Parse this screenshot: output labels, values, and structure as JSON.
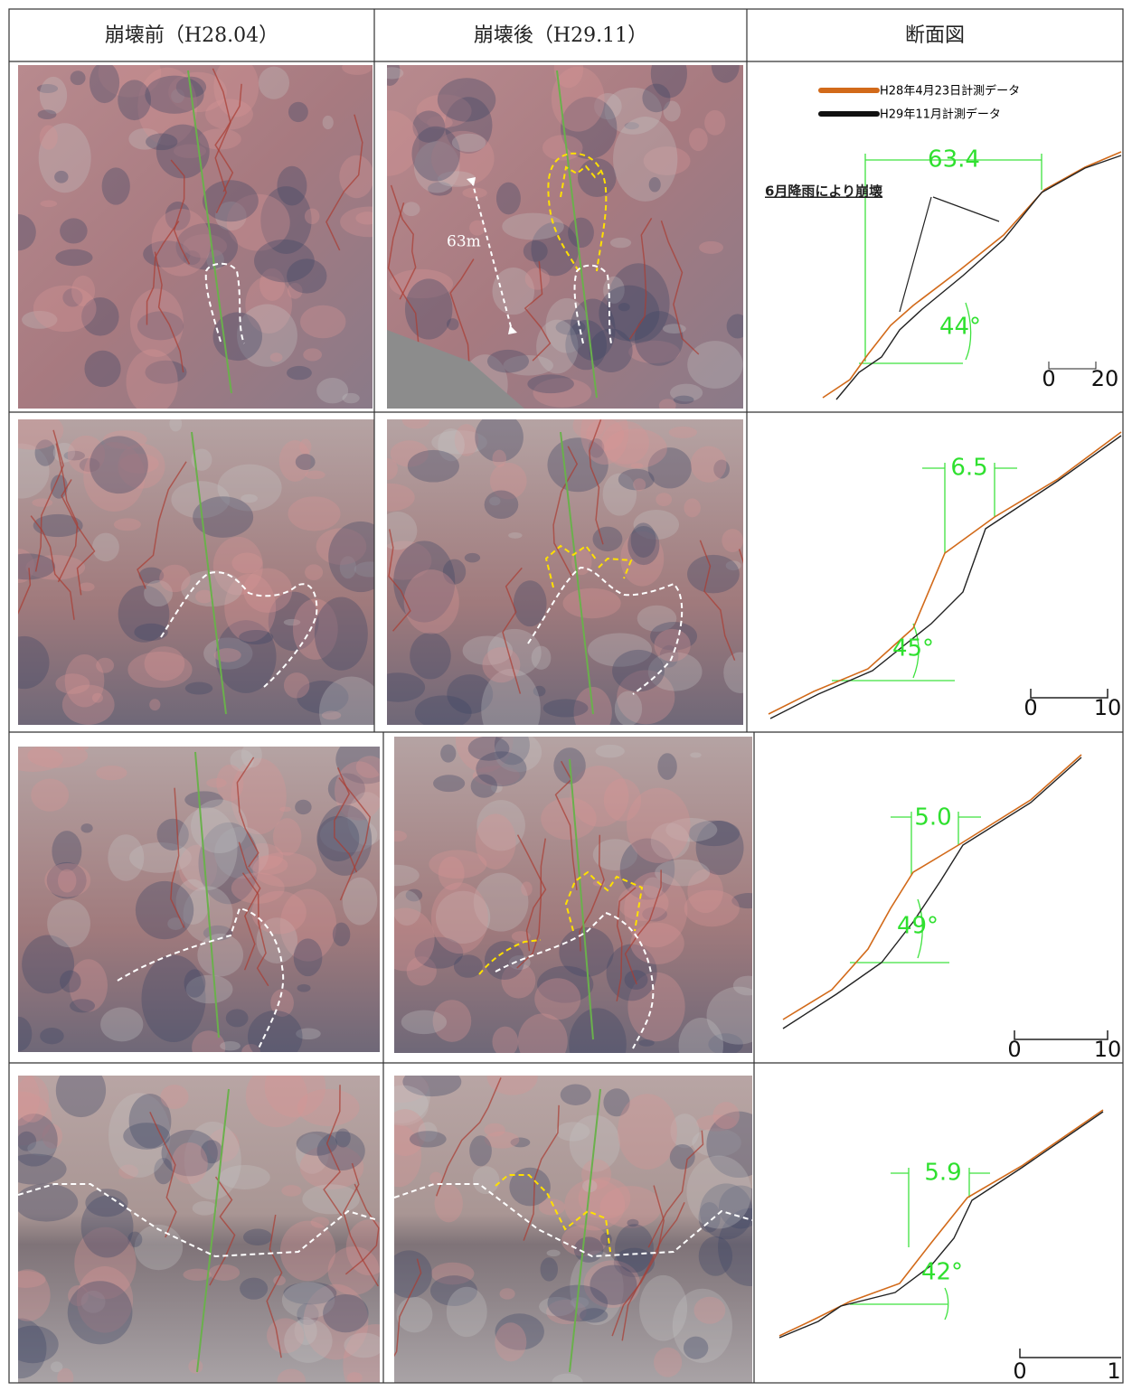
{
  "header": {
    "columns": [
      "崩壊前（H28.04）",
      "崩壊後（H29.11）",
      "断面図"
    ]
  },
  "rows": [
    {
      "after_label": "63m",
      "section": {
        "legend": [
          "H28年4月23日計測データ",
          "H29年11月計測データ"
        ],
        "annotation": "6月降雨により崩壊",
        "width": "63.4",
        "angle": "44°",
        "scale": [
          "0",
          "20"
        ]
      }
    },
    {
      "section": {
        "width": "6.5",
        "angle": "45°",
        "scale": [
          "0",
          "10"
        ]
      }
    },
    {
      "section": {
        "width": "5.0",
        "angle": "49°",
        "scale": [
          "0",
          "10"
        ]
      }
    },
    {
      "section": {
        "width": "5.9",
        "angle": "42°",
        "scale": [
          "0",
          "1"
        ]
      }
    }
  ]
}
